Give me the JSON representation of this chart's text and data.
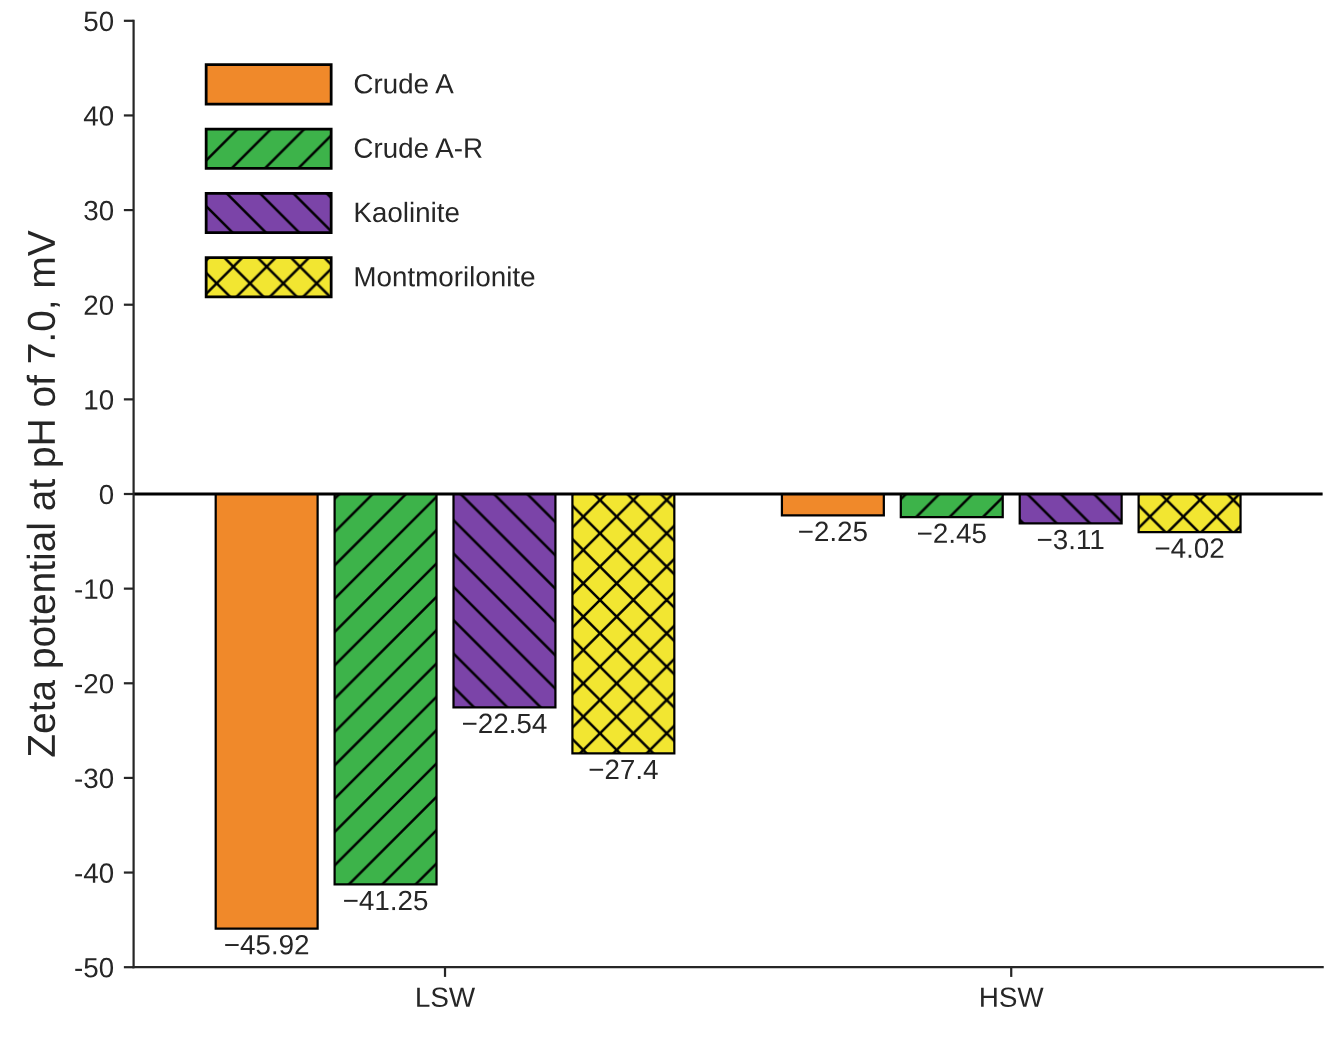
{
  "chart_data": {
    "type": "bar",
    "ylabel": "Zeta potential at pH of 7.0, mV",
    "categories": [
      "LSW",
      "HSW"
    ],
    "series": [
      {
        "name": "Crude A",
        "color": "#f0892a",
        "values": [
          -45.92,
          -2.25
        ],
        "value_labels": [
          "−45.92",
          "−2.25"
        ]
      },
      {
        "name": "Crude A-R",
        "color": "#3db34a",
        "values": [
          -41.25,
          -2.45
        ],
        "value_labels": [
          "−41.25",
          "−2.45"
        ]
      },
      {
        "name": "Kaolinite",
        "color": "#7b44a8",
        "values": [
          -22.54,
          -3.11
        ],
        "value_labels": [
          "−22.54",
          "−3.11"
        ]
      },
      {
        "name": "Montmorilonite",
        "color": "#f2e631",
        "values": [
          -27.4,
          -4.02
        ],
        "value_labels": [
          "−27.4",
          "−4.02"
        ]
      }
    ],
    "ylim": [
      -50,
      50
    ],
    "yticks": [
      -50,
      -40,
      -30,
      -20,
      -10,
      0,
      10,
      20,
      30,
      40,
      50
    ],
    "ref_lines": [
      {
        "axis": "y",
        "value": 0
      }
    ],
    "legend": "top left",
    "grid": false
  }
}
